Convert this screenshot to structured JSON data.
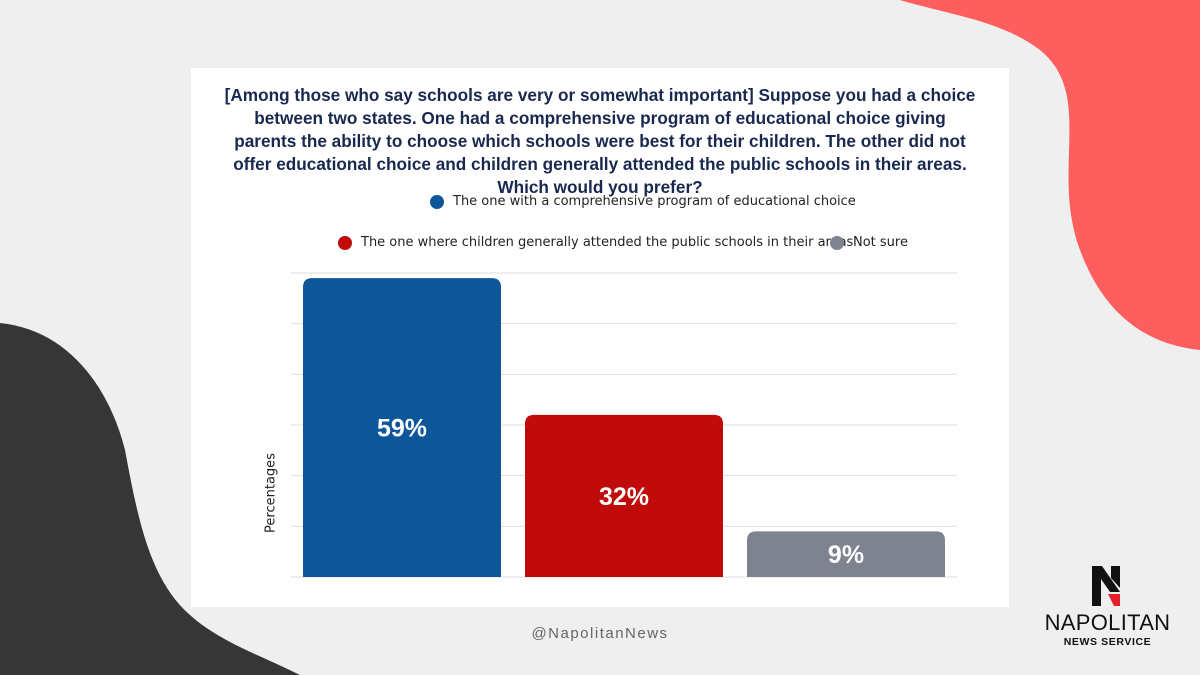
{
  "colors": {
    "background": "#efefef",
    "accent_coral": "#fd5e5e",
    "accent_dark": "#363636",
    "card": "#ffffff",
    "title_text": "#18284f"
  },
  "chart_data": {
    "type": "bar",
    "title": "[Among those who say schools are very or somewhat important] Suppose you had a choice between two states. One had a comprehensive program of educational choice giving parents the ability to choose which schools were best for their children. The other did not offer educational choice and children generally attended the public schools in their areas. Which would you prefer?",
    "ylabel": "Percentages",
    "ylim": [
      0,
      60
    ],
    "grid": true,
    "legend_position": "top",
    "series": [
      {
        "name": "The one with a comprehensive program of educational choice",
        "value": 59,
        "label": "59%",
        "color": "#0d5699"
      },
      {
        "name": "The one where children generally attended the public schools in their areas",
        "value": 32,
        "label": "32%",
        "color": "#c10b0b"
      },
      {
        "name": "Not sure",
        "value": 9,
        "label": "9%",
        "color": "#7e838f"
      }
    ]
  },
  "footer": {
    "handle": "@NapolitanNews",
    "brand_name": "NAPOLITAN",
    "brand_sub": "NEWS SERVICE",
    "logo_icon": "napolitan-n-logo-icon"
  }
}
